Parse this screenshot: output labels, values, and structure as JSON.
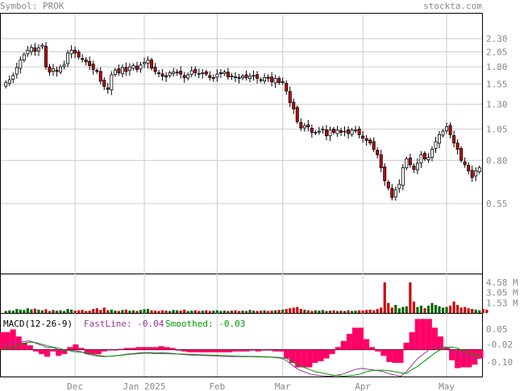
{
  "header": {
    "symbol": "Symbol: PROK",
    "site": "stockta.com"
  },
  "macd": {
    "label": "MACD(12-26-9)",
    "fast_label": "FastLine: -0.04",
    "smoothed_label": "Smoothed: -0.03"
  },
  "colors": {
    "up_fill": "#ffffff",
    "down_fill": "#cc0000",
    "candle_outline": "#000000",
    "volume_up": "#006600",
    "volume_down": "#cc0000",
    "fast_line": "#993399",
    "smoothed_line": "#009900",
    "histogram": "#ff0066",
    "grid": "#cccccc",
    "text": "#888888"
  },
  "chart_data": [
    {
      "type": "candlestick",
      "title": "",
      "y_scale": "log",
      "y_ticks": [
        "2.30",
        "2.05",
        "1.80",
        "1.55",
        "1.30",
        "1.05",
        "0.80",
        "0.55"
      ],
      "x_ticks": [
        "Dec",
        "Jan 2025",
        "Feb",
        "Mar",
        "Apr",
        "May"
      ],
      "grid": true,
      "close": [
        1.57,
        1.61,
        1.67,
        1.79,
        1.91,
        2.0,
        2.08,
        2.13,
        2.06,
        2.12,
        2.17,
        1.8,
        1.72,
        1.77,
        1.73,
        1.8,
        1.83,
        2.03,
        2.08,
        2.03,
        1.96,
        1.92,
        1.88,
        1.82,
        1.76,
        1.73,
        1.59,
        1.52,
        1.48,
        1.68,
        1.75,
        1.71,
        1.79,
        1.73,
        1.8,
        1.82,
        1.76,
        1.83,
        1.87,
        1.91,
        1.78,
        1.73,
        1.7,
        1.66,
        1.65,
        1.71,
        1.72,
        1.72,
        1.69,
        1.64,
        1.68,
        1.74,
        1.71,
        1.7,
        1.71,
        1.69,
        1.64,
        1.64,
        1.69,
        1.71,
        1.72,
        1.65,
        1.66,
        1.65,
        1.63,
        1.66,
        1.64,
        1.66,
        1.67,
        1.63,
        1.6,
        1.64,
        1.63,
        1.58,
        1.63,
        1.57,
        1.58,
        1.46,
        1.32,
        1.25,
        1.12,
        1.06,
        1.08,
        1.07,
        1.02,
        1.02,
        1.03,
        1.05,
        0.99,
        1.04,
        1.02,
        1.04,
        1.02,
        1.03,
        1.01,
        1.04,
        1.04,
        1.0,
        0.97,
        0.95,
        0.93,
        0.88,
        0.84,
        0.75,
        0.67,
        0.63,
        0.58,
        0.62,
        0.65,
        0.75,
        0.81,
        0.77,
        0.74,
        0.78,
        0.84,
        0.81,
        0.82,
        0.88,
        0.94,
        1.0,
        1.03,
        1.07,
        1.0,
        0.93,
        0.88,
        0.8,
        0.77,
        0.73,
        0.69,
        0.73,
        0.75
      ],
      "volume_millions": [
        0.3,
        0.4,
        0.35,
        0.6,
        0.5,
        0.45,
        0.7,
        0.55,
        0.65,
        0.5,
        0.4,
        0.55,
        0.3,
        0.45,
        0.35,
        0.4,
        0.3,
        0.6,
        0.5,
        0.35,
        0.4,
        0.45,
        0.3,
        0.35,
        0.6,
        0.7,
        0.45,
        0.8,
        0.4,
        0.5,
        0.35,
        0.3,
        0.45,
        0.5,
        0.35,
        0.4,
        0.3,
        0.45,
        0.55,
        0.6,
        0.4,
        0.35,
        0.3,
        0.4,
        0.35,
        0.3,
        0.45,
        0.4,
        0.35,
        0.5,
        0.3,
        0.35,
        0.4,
        0.3,
        0.35,
        0.4,
        0.3,
        0.35,
        0.4,
        0.3,
        0.35,
        0.3,
        0.35,
        0.4,
        0.3,
        0.35,
        0.3,
        0.45,
        0.35,
        0.3,
        0.35,
        0.4,
        0.3,
        0.35,
        0.4,
        0.45,
        0.5,
        0.6,
        0.7,
        0.8,
        0.9,
        0.6,
        0.5,
        0.4,
        0.3,
        0.4,
        0.35,
        0.45,
        0.3,
        0.35,
        0.4,
        0.3,
        0.35,
        0.3,
        0.4,
        0.3,
        0.35,
        0.4,
        0.35,
        0.45,
        0.5,
        0.4,
        0.6,
        0.8,
        4.58,
        1.5,
        0.8,
        1.2,
        0.7,
        0.9,
        1.0,
        4.58,
        1.7,
        0.9,
        1.1,
        0.7,
        1.1,
        1.5,
        1.2,
        1.0,
        0.8,
        0.9,
        1.1,
        1.7,
        1.2,
        0.8,
        0.9,
        0.7,
        0.6,
        0.5,
        0.4,
        0.6,
        0.5
      ],
      "volume_ticks": [
        "4.58 M",
        "3.05 M",
        "1.53 M"
      ],
      "macd_ticks": [
        "0.05",
        "-0.02",
        "-0.10"
      ],
      "macd_fast": [
        0.02,
        0.025,
        0.035,
        0.035,
        0.038,
        0.04,
        0.03,
        0.02,
        0.01,
        0.01,
        0.0,
        -0.005,
        -0.002,
        -0.004,
        -0.01,
        -0.02,
        -0.025,
        -0.03,
        -0.032,
        -0.03,
        -0.028,
        -0.024,
        -0.02,
        -0.018,
        -0.015,
        -0.013,
        -0.013,
        -0.015,
        -0.014,
        -0.015,
        -0.017,
        -0.02,
        -0.022,
        -0.024,
        -0.025,
        -0.026,
        -0.027,
        -0.028,
        -0.029,
        -0.03,
        -0.031,
        -0.031,
        -0.032,
        -0.032,
        -0.032,
        -0.033,
        -0.033,
        -0.034,
        -0.036,
        -0.038,
        -0.05,
        -0.07,
        -0.09,
        -0.1,
        -0.11,
        -0.115,
        -0.118,
        -0.12,
        -0.12,
        -0.115,
        -0.11,
        -0.1,
        -0.09,
        -0.085,
        -0.088,
        -0.092,
        -0.095,
        -0.1,
        -0.11,
        -0.115,
        -0.12,
        -0.1,
        -0.07,
        -0.04,
        -0.02,
        0.0,
        0.01,
        0.015,
        0.012,
        0.0,
        -0.015,
        -0.025,
        -0.035,
        -0.04,
        -0.04
      ],
      "macd_smoothed": [
        0.0,
        0.005,
        0.012,
        0.02,
        0.03,
        0.035,
        0.032,
        0.025,
        0.018,
        0.012,
        0.007,
        0.0,
        -0.005,
        -0.01,
        -0.012,
        -0.015,
        -0.02,
        -0.025,
        -0.03,
        -0.03,
        -0.028,
        -0.025,
        -0.022,
        -0.02,
        -0.018,
        -0.016,
        -0.016,
        -0.018,
        -0.018,
        -0.018,
        -0.019,
        -0.019,
        -0.02,
        -0.021,
        -0.022,
        -0.023,
        -0.024,
        -0.025,
        -0.026,
        -0.027,
        -0.028,
        -0.029,
        -0.03,
        -0.03,
        -0.031,
        -0.031,
        -0.032,
        -0.033,
        -0.034,
        -0.036,
        -0.04,
        -0.055,
        -0.07,
        -0.08,
        -0.09,
        -0.1,
        -0.105,
        -0.11,
        -0.115,
        -0.118,
        -0.12,
        -0.118,
        -0.115,
        -0.11,
        -0.1,
        -0.095,
        -0.093,
        -0.093,
        -0.096,
        -0.1,
        -0.105,
        -0.108,
        -0.09,
        -0.075,
        -0.055,
        -0.035,
        -0.015,
        0.0,
        0.01,
        0.012,
        0.006,
        -0.005,
        -0.015,
        -0.023,
        -0.03
      ]
    }
  ]
}
